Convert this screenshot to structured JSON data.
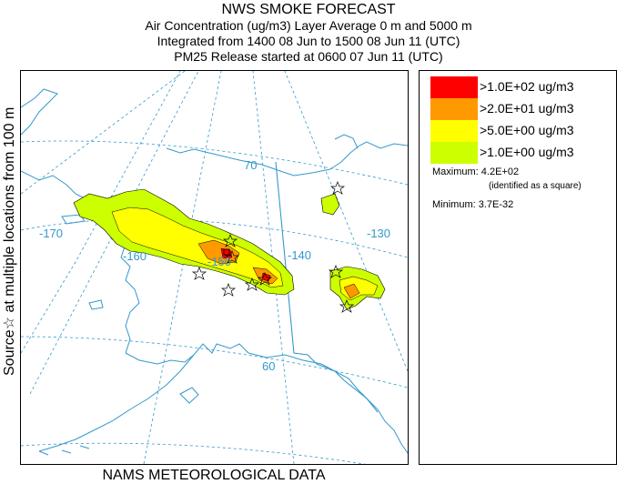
{
  "header": {
    "title": "NWS SMOKE FORECAST",
    "line1": "Air Concentration (ug/m3) Layer Average    0 m and  5000 m",
    "line2": "Integrated from 1400 08 Jun to 1500 08 Jun 11 (UTC)",
    "line3": "PM25 Release started at 0600 07 Jun 11 (UTC)"
  },
  "side_label": "Source☆  at multiple locations   from   100 m",
  "bottom_label": "NAMS METEOROLOGICAL DATA",
  "map": {
    "graticule_labels": {
      "lon_170": "-170",
      "lon_160": "-160",
      "lon_150": "-150",
      "lon_140": "-140",
      "lon_130": "-130",
      "lat_70": "70",
      "lat_60": "60"
    },
    "colors": {
      "coast": "#3399cc",
      "graticule": "#3399cc",
      "level1": "#ccff00",
      "level2": "#ffff00",
      "level3": "#ff9900",
      "level4": "#ff0000"
    },
    "source_marker": "star-icon"
  },
  "legend": {
    "levels": [
      {
        "label": ">1.0E+02 ug/m3",
        "color": "#ff0000"
      },
      {
        "label": ">2.0E+01 ug/m3",
        "color": "#ff9900"
      },
      {
        "label": ">5.0E+00 ug/m3",
        "color": "#ffff00"
      },
      {
        "label": ">1.0E+00 ug/m3",
        "color": "#ccff00"
      }
    ],
    "maximum": "Maximum: 4.2E+02",
    "maximum_note": "(identified as a square)",
    "minimum": "Minimum: 3.7E-32"
  }
}
